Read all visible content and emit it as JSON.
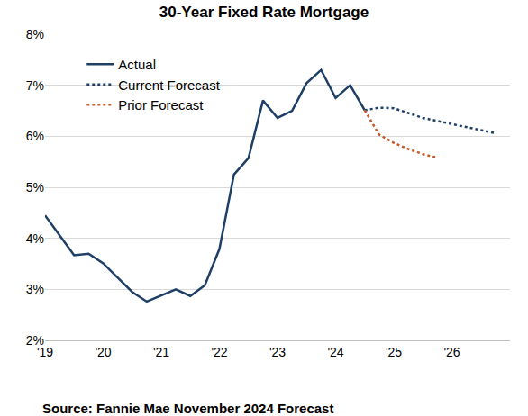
{
  "chart_data": {
    "type": "line",
    "title": "30-Year Fixed Rate Mortgage",
    "annotations": [
      "Source: Fannie Mae November 2024 Forecast"
    ],
    "x": [
      2019,
      2019.25,
      2019.5,
      2019.75,
      2020,
      2020.25,
      2020.5,
      2020.75,
      2021,
      2021.25,
      2021.5,
      2021.75,
      2022,
      2022.25,
      2022.5,
      2022.75,
      2023,
      2023.25,
      2023.5,
      2023.75,
      2024,
      2024.25,
      2024.5,
      2024.75,
      2025,
      2025.25,
      2025.5,
      2025.75,
      2026,
      2026.25,
      2026.5,
      2026.75
    ],
    "series": [
      {
        "name": "Actual",
        "color": "#1f3f66",
        "line_style": "solid",
        "values": [
          4.45,
          4.05,
          3.67,
          3.7,
          3.51,
          3.23,
          2.95,
          2.76,
          2.88,
          3.0,
          2.87,
          3.08,
          3.79,
          5.25,
          5.57,
          6.7,
          6.36,
          6.5,
          7.04,
          7.3,
          6.75,
          7.0,
          6.51,
          null,
          null,
          null,
          null,
          null,
          null,
          null,
          null,
          null
        ]
      },
      {
        "name": "Current Forecast",
        "color": "#1f3f66",
        "line_style": "dot",
        "values": [
          null,
          null,
          null,
          null,
          null,
          null,
          null,
          null,
          null,
          null,
          null,
          null,
          null,
          null,
          null,
          null,
          null,
          null,
          null,
          null,
          null,
          null,
          6.51,
          6.56,
          6.55,
          6.45,
          6.36,
          6.3,
          6.24,
          6.18,
          6.12,
          6.06
        ]
      },
      {
        "name": "Prior Forecast",
        "color": "#c55a28",
        "line_style": "dot",
        "values": [
          null,
          null,
          null,
          null,
          null,
          null,
          null,
          null,
          null,
          null,
          null,
          null,
          null,
          null,
          null,
          null,
          null,
          null,
          null,
          null,
          null,
          null,
          6.51,
          6.03,
          5.87,
          5.75,
          5.65,
          5.58,
          null,
          null,
          null,
          null
        ]
      }
    ],
    "xlim": [
      2019,
      2027
    ],
    "xticks": [
      {
        "value": 2019,
        "label": "'19"
      },
      {
        "value": 2020,
        "label": "'20"
      },
      {
        "value": 2021,
        "label": "'21"
      },
      {
        "value": 2022,
        "label": "'22"
      },
      {
        "value": 2023,
        "label": "'23"
      },
      {
        "value": 2024,
        "label": "'24"
      },
      {
        "value": 2025,
        "label": "'25"
      },
      {
        "value": 2026,
        "label": "'26"
      }
    ],
    "ylim": [
      2,
      8
    ],
    "yticks": [
      {
        "value": 2,
        "label": "2%"
      },
      {
        "value": 3,
        "label": "3%"
      },
      {
        "value": 4,
        "label": "4%"
      },
      {
        "value": 5,
        "label": "5%"
      },
      {
        "value": 6,
        "label": "6%"
      },
      {
        "value": 7,
        "label": "7%"
      },
      {
        "value": 8,
        "label": "8%"
      }
    ],
    "grid": true,
    "legend": "upper left"
  }
}
